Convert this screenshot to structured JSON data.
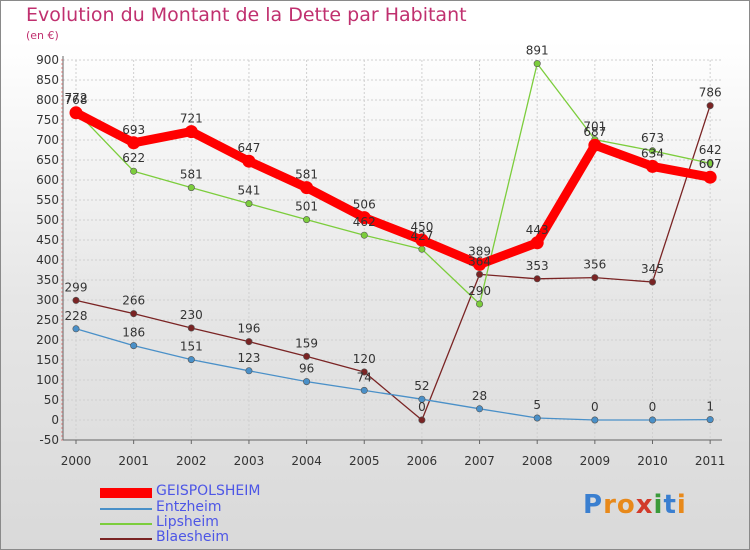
{
  "title": "Evolution du Montant de la Dette par Habitant",
  "unit_label": "(en €)",
  "logo_text": "Proxiti",
  "chart_data": {
    "type": "line",
    "title": "Evolution du Montant de la Dette par Habitant",
    "subtitle": "(en €)",
    "xlabel": "",
    "ylabel": "",
    "x": [
      "2000",
      "2001",
      "2002",
      "2003",
      "2004",
      "2005",
      "2006",
      "2007",
      "2008",
      "2009",
      "2010",
      "2011"
    ],
    "yticks": [
      "900",
      "850",
      "800",
      "750",
      "700",
      "650",
      "600",
      "550",
      "500",
      "450",
      "400",
      "350",
      "300",
      "250",
      "200",
      "150",
      "100",
      "50",
      "0",
      "-50"
    ],
    "ylim": [
      -50,
      900
    ],
    "grid": true,
    "legend_position": "bottom-left",
    "series": [
      {
        "name": "GEISPOLSHEIM",
        "color": "#ff0000",
        "width": "thick",
        "values": [
          768,
          693,
          721,
          647,
          581,
          506,
          450,
          389,
          443,
          687,
          634,
          607
        ],
        "labels": [
          "768",
          "693",
          "721",
          "647",
          "581",
          "506",
          "450",
          "389",
          "443",
          "687",
          "634",
          "607"
        ]
      },
      {
        "name": "Entzheim",
        "color": "#4a90c8",
        "width": "thin",
        "values": [
          228,
          186,
          151,
          123,
          96,
          74,
          52,
          28,
          5,
          0,
          0,
          1
        ],
        "labels": [
          "228",
          "186",
          "151",
          "123",
          "96",
          "74",
          "52",
          "28",
          "5",
          "0",
          "0",
          "1"
        ]
      },
      {
        "name": "Lipsheim",
        "color": "#7ccd3c",
        "width": "thin",
        "values": [
          772,
          622,
          581,
          541,
          501,
          462,
          427,
          290,
          891,
          701,
          673,
          642
        ],
        "labels": [
          "772",
          "622",
          "581",
          "541",
          "501",
          "462",
          "427",
          "290",
          "891",
          "701",
          "673",
          "642"
        ]
      },
      {
        "name": "Blaesheim",
        "color": "#7a2424",
        "width": "thin",
        "values": [
          299,
          266,
          230,
          196,
          159,
          120,
          0,
          364,
          353,
          356,
          345,
          786
        ],
        "labels": [
          "299",
          "266",
          "230",
          "196",
          "159",
          "120",
          "0",
          "364",
          "353",
          "356",
          "345",
          "786"
        ]
      }
    ]
  }
}
